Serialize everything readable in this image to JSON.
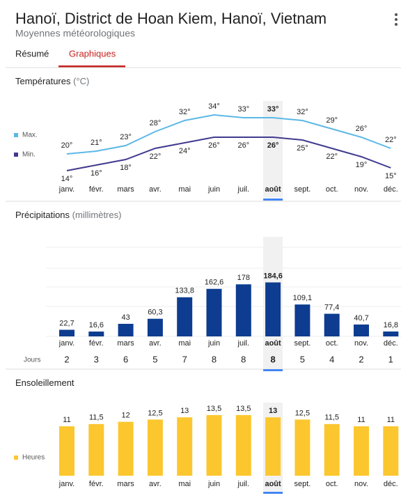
{
  "header": {
    "title": "Hanoï, District de Hoan Kiem, Hanoï, Vietnam",
    "subtitle": "Moyennes météorologiques"
  },
  "tabs": [
    "Résumé",
    "Graphiques"
  ],
  "chart_data": [
    {
      "type": "line",
      "title": "Températures",
      "unit": "(°C)",
      "selected": "août",
      "categories": [
        "janv.",
        "févr.",
        "mars",
        "avr.",
        "mai",
        "juin",
        "juil.",
        "août",
        "sept.",
        "oct.",
        "nov.",
        "déc."
      ],
      "series": [
        {
          "name": "Max.",
          "color": "#5bb8e6",
          "values": [
            20,
            21,
            23,
            28,
            32,
            34,
            33,
            33,
            32,
            29,
            26,
            22
          ],
          "value_labels": [
            "20°",
            "21°",
            "23°",
            "28°",
            "32°",
            "34°",
            "33°",
            "33°",
            "32°",
            "29°",
            "26°",
            "22°"
          ]
        },
        {
          "name": "Min.",
          "color": "#3f3a8f",
          "values": [
            14,
            16,
            18,
            22,
            24,
            26,
            26,
            26,
            25,
            22,
            19,
            15
          ],
          "value_labels": [
            "14°",
            "16°",
            "18°",
            "22°",
            "24°",
            "26°",
            "26°",
            "26°",
            "25°",
            "22°",
            "19°",
            "15°"
          ]
        }
      ]
    },
    {
      "type": "bar",
      "title": "Précipitations",
      "unit": "(millimètres)",
      "selected": "août",
      "color": "#0d3c90",
      "categories": [
        "janv.",
        "févr.",
        "mars",
        "avr.",
        "mai",
        "juin",
        "juil.",
        "août",
        "sept.",
        "oct.",
        "nov.",
        "déc."
      ],
      "values": [
        22.7,
        16.6,
        43,
        60.3,
        133.8,
        162.6,
        178,
        184.6,
        109.1,
        77.4,
        40.7,
        16.8
      ],
      "value_labels": [
        "22,7",
        "16,6",
        "43",
        "60,3",
        "133,8",
        "162,6",
        "178",
        "184,6",
        "109,1",
        "77,4",
        "40,7",
        "16,8"
      ],
      "days_label": "Jours",
      "days": [
        2,
        3,
        6,
        5,
        7,
        8,
        8,
        8,
        5,
        4,
        2,
        1
      ]
    },
    {
      "type": "bar",
      "title": "Ensoleillement",
      "selected": "août",
      "color": "#fcc72e",
      "legend": "Heures",
      "categories": [
        "janv.",
        "févr.",
        "mars",
        "avr.",
        "mai",
        "juin",
        "juil.",
        "août",
        "sept.",
        "oct.",
        "nov.",
        "déc."
      ],
      "values": [
        11,
        11.5,
        12,
        12.5,
        13,
        13.5,
        13.5,
        13,
        12.5,
        11.5,
        11,
        11
      ],
      "value_labels": [
        "11",
        "11,5",
        "12",
        "12,5",
        "13",
        "13,5",
        "13,5",
        "13",
        "12,5",
        "11,5",
        "11",
        "11"
      ]
    }
  ]
}
